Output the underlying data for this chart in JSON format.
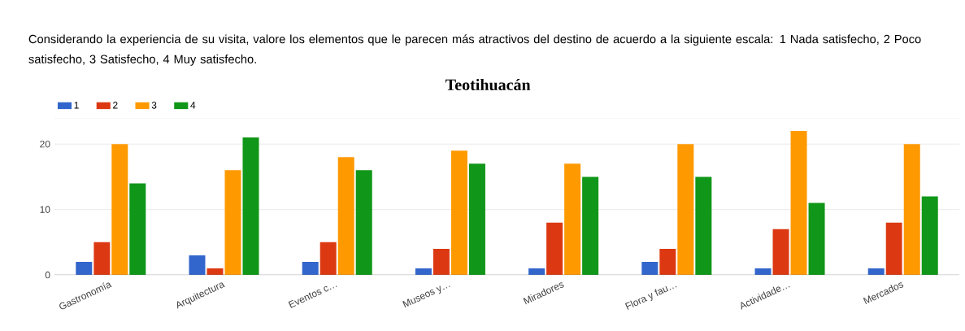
{
  "chart_data": {
    "type": "bar",
    "title": "Considerando la experiencia de su visita, valore los elementos que le parecen más atractivos del destino de acuerdo a la siguiente escala: 1 Nada satisfecho, 2 Poco satisfecho, 3 Satisfecho, 4 Muy satisfecho.",
    "subtitle": "Teotihuacán",
    "categories": [
      "Gastronomía",
      "Arquitectura",
      "Eventos c…",
      "Museos y…",
      "Miradores",
      "Flora y fau…",
      "Actividade…",
      "Mercados"
    ],
    "series": [
      {
        "name": "1",
        "color": "#3366cc",
        "values": [
          2,
          3,
          2,
          1,
          1,
          2,
          1,
          1
        ]
      },
      {
        "name": "2",
        "color": "#dc3912",
        "values": [
          5,
          1,
          5,
          4,
          8,
          4,
          7,
          8
        ]
      },
      {
        "name": "3",
        "color": "#ff9900",
        "values": [
          20,
          16,
          18,
          19,
          17,
          20,
          22,
          20
        ]
      },
      {
        "name": "4",
        "color": "#109618",
        "values": [
          14,
          21,
          16,
          17,
          15,
          15,
          11,
          12
        ]
      }
    ],
    "ylim": [
      0,
      24
    ],
    "yticks": [
      0,
      10,
      20
    ],
    "grid": "y",
    "legend": "top left"
  }
}
